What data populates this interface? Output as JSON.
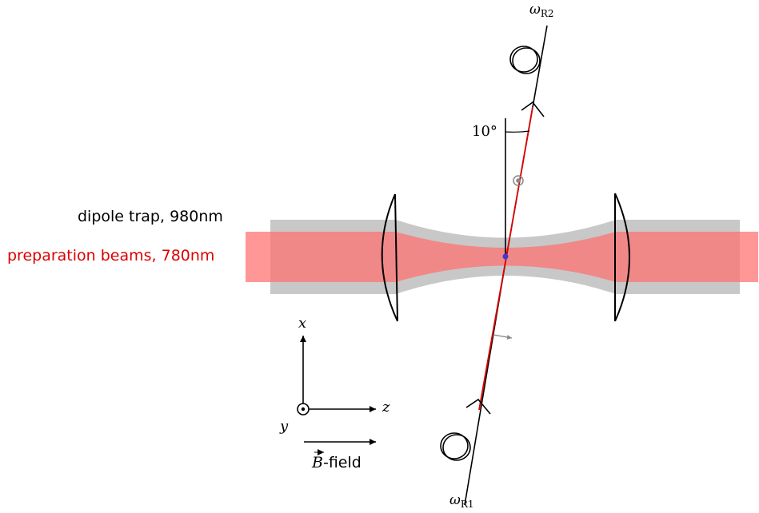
{
  "labels": {
    "dipole_trap": "dipole trap, 980nm",
    "preparation_beams": "preparation beams, 780nm",
    "angle": "10°",
    "omega_r2_base": "ω",
    "omega_r2_sub": "R2",
    "omega_r1_base": "ω",
    "omega_r1_sub": "R1",
    "axis_x": "x",
    "axis_y": "y",
    "axis_z": "z",
    "b_symbol": "B",
    "b_suffix": "-field"
  },
  "colors": {
    "dipole_trap_gray": "#c8c8c8",
    "preparation_red": "#ff8c8c",
    "raman_red": "#dd0000",
    "atom_blue": "#3a3ad0",
    "preparation_text": "#dd0000"
  }
}
